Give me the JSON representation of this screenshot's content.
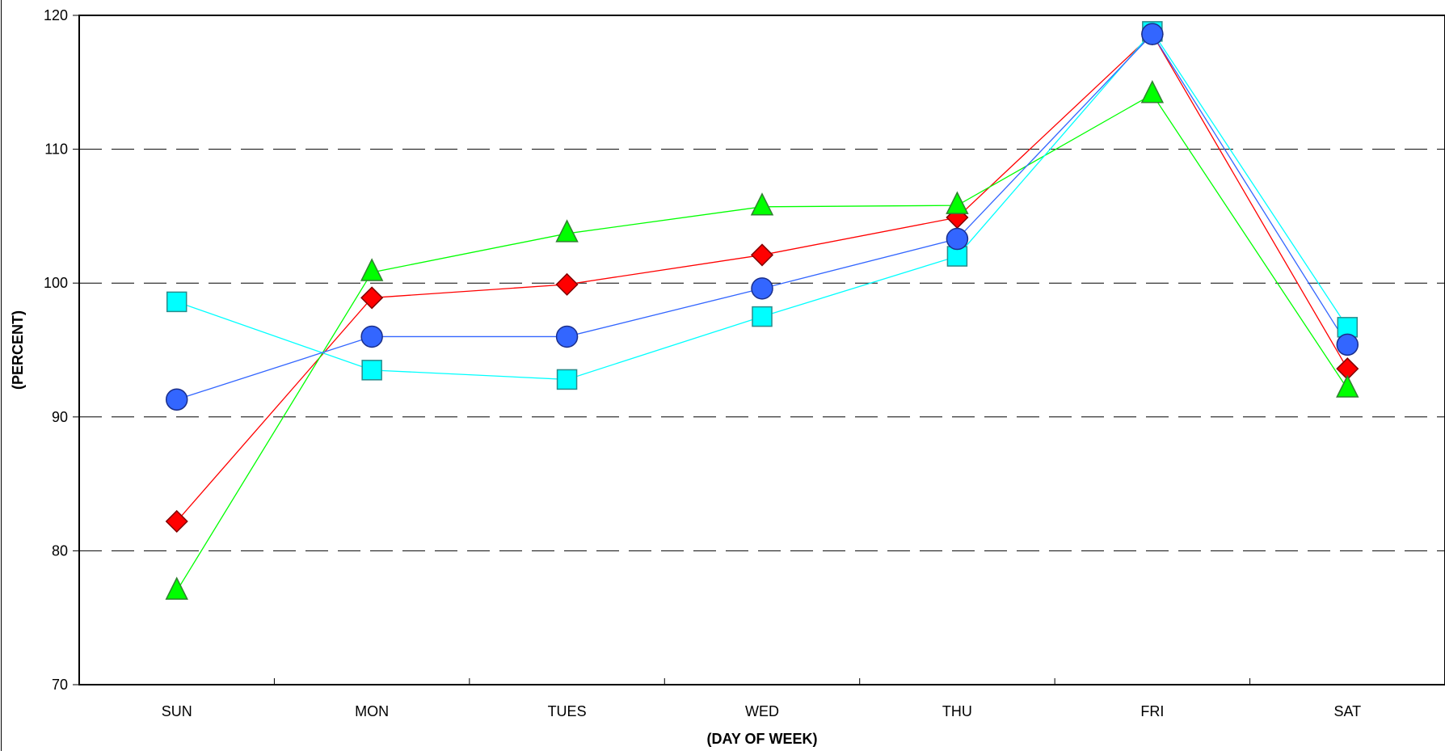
{
  "chart_data": {
    "type": "line",
    "title": "",
    "xlabel": "(DAY OF WEEK)",
    "ylabel": "(PERCENT)",
    "categories": [
      "SUN",
      "MON",
      "TUES",
      "WED",
      "THU",
      "FRI",
      "SAT"
    ],
    "ylim": [
      70,
      120
    ],
    "yticks": [
      70,
      80,
      90,
      100,
      110,
      120
    ],
    "grid": "horizontal-dashed",
    "legend": "none",
    "series": [
      {
        "marker": "diamond",
        "color": "#ff0000",
        "values": [
          82.2,
          98.9,
          99.9,
          102.1,
          104.9,
          118.6,
          93.6
        ]
      },
      {
        "marker": "triangle",
        "color": "#00ff00",
        "values": [
          77.0,
          100.8,
          103.7,
          105.7,
          105.8,
          114.1,
          92.1
        ]
      },
      {
        "marker": "square",
        "color": "#00ffff",
        "values": [
          98.6,
          93.5,
          92.8,
          97.5,
          102.0,
          118.8,
          96.7
        ]
      },
      {
        "marker": "circle",
        "color": "#3366ff",
        "values": [
          91.3,
          96.0,
          96.0,
          99.6,
          103.3,
          118.6,
          95.4
        ]
      }
    ]
  }
}
